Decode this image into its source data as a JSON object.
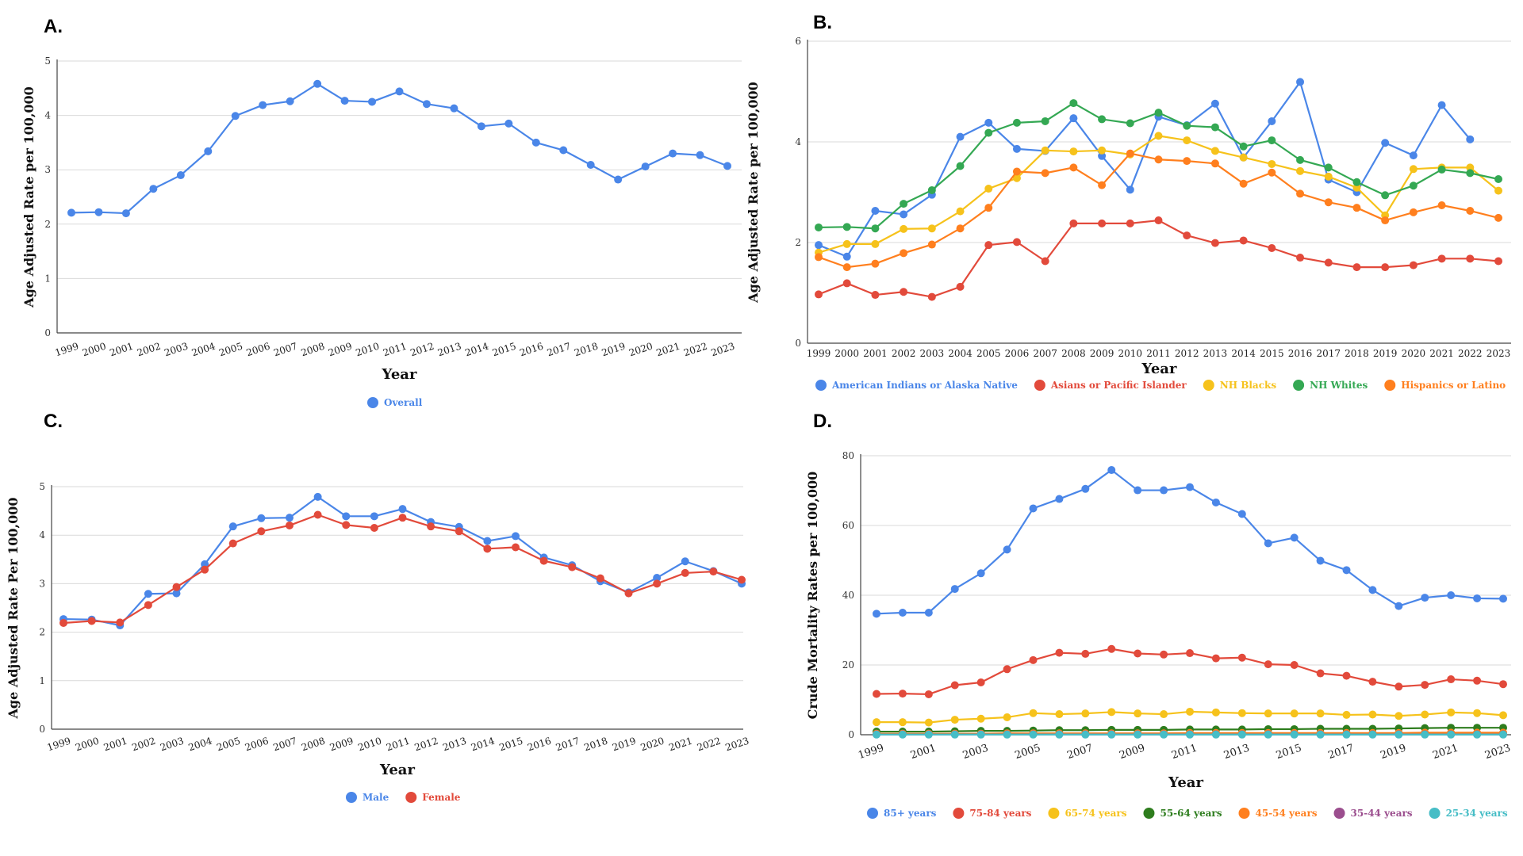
{
  "panel_labels": [
    "A.",
    "B.",
    "C.",
    "D."
  ],
  "colors": {
    "blue": "#4a86e8",
    "red": "#e24a3b",
    "yellow": "#f6c21b",
    "green": "#34a853",
    "orange": "#ff7f1e",
    "darkgreen": "#2e7d1e",
    "purple": "#9b4e8e",
    "teal": "#46bdc6"
  },
  "chart_data": [
    {
      "type": "line",
      "xlabel": "Year",
      "ylabel": "Age Adjusted Rate per 100,000",
      "ylim": [
        0,
        5
      ],
      "yticks": [
        0,
        1,
        2,
        3,
        4,
        5
      ],
      "grid": true,
      "legend": "bottom",
      "categories": [
        "1999",
        "2000",
        "2001",
        "2002",
        "2003",
        "2004",
        "2005",
        "2006",
        "2007",
        "2008",
        "2009",
        "2010",
        "2011",
        "2012",
        "2013",
        "2014",
        "2015",
        "2016",
        "2017",
        "2018",
        "2019",
        "2020",
        "2021",
        "2022",
        "2023"
      ],
      "series": [
        {
          "name": "Overall",
          "color": "#4a86e8",
          "values": [
            2.21,
            2.22,
            2.2,
            2.65,
            2.9,
            3.34,
            3.99,
            4.19,
            4.26,
            4.58,
            4.27,
            4.25,
            4.44,
            4.21,
            4.13,
            3.8,
            3.85,
            3.5,
            3.36,
            3.09,
            2.82,
            3.06,
            3.3,
            3.27,
            3.07
          ]
        }
      ]
    },
    {
      "type": "line",
      "xlabel": "Year",
      "ylabel": "Age Adjusted Rate per 100,000",
      "ylim": [
        0,
        6
      ],
      "yticks": [
        0,
        2,
        4,
        6
      ],
      "grid": true,
      "legend": "bottom",
      "categories": [
        "1999",
        "2000",
        "2001",
        "2002",
        "2003",
        "2004",
        "2005",
        "2006",
        "2007",
        "2008",
        "2009",
        "2010",
        "2011",
        "2012",
        "2013",
        "2014",
        "2015",
        "2016",
        "2017",
        "2018",
        "2019",
        "2020",
        "2021",
        "2022",
        "2023"
      ],
      "series": [
        {
          "name": "American Indians or Alaska Native",
          "color": "#4a86e8",
          "values": [
            1.95,
            1.72,
            2.63,
            2.56,
            2.95,
            4.1,
            4.38,
            3.86,
            3.82,
            4.47,
            3.72,
            3.05,
            4.5,
            4.33,
            4.76,
            3.69,
            4.41,
            5.19,
            3.25,
            3.0,
            3.98,
            3.73,
            4.73,
            4.05,
            null
          ]
        },
        {
          "name": "Asians or Pacific Islander",
          "color": "#e24a3b",
          "values": [
            0.97,
            1.19,
            0.96,
            1.02,
            0.92,
            1.12,
            1.95,
            2.01,
            1.63,
            2.38,
            2.38,
            2.38,
            2.44,
            2.14,
            1.99,
            2.04,
            1.89,
            1.7,
            1.6,
            1.51,
            1.51,
            1.55,
            1.68,
            1.68,
            1.63
          ]
        },
        {
          "name": "NH Blacks",
          "color": "#f6c21b",
          "values": [
            1.8,
            1.97,
            1.97,
            2.27,
            2.28,
            2.62,
            3.07,
            3.28,
            3.83,
            3.81,
            3.83,
            3.75,
            4.12,
            4.03,
            3.82,
            3.69,
            3.56,
            3.42,
            3.31,
            3.09,
            2.54,
            3.46,
            3.49,
            3.49,
            3.03
          ]
        },
        {
          "name": "NH Whites",
          "color": "#34a853",
          "values": [
            2.3,
            2.31,
            2.28,
            2.77,
            3.04,
            3.52,
            4.18,
            4.38,
            4.41,
            4.77,
            4.45,
            4.37,
            4.58,
            4.32,
            4.29,
            3.91,
            4.03,
            3.64,
            3.49,
            3.2,
            2.94,
            3.13,
            3.45,
            3.38,
            3.26
          ]
        },
        {
          "name": "Hispanics or Latino",
          "color": "#ff7f1e",
          "values": [
            1.71,
            1.51,
            1.58,
            1.79,
            1.96,
            2.28,
            2.69,
            3.41,
            3.38,
            3.49,
            3.14,
            3.77,
            3.65,
            3.62,
            3.57,
            3.17,
            3.39,
            2.97,
            2.8,
            2.69,
            2.44,
            2.6,
            2.74,
            2.63,
            2.49
          ]
        }
      ]
    },
    {
      "type": "line",
      "xlabel": "Year",
      "ylabel": "Age Adjusted Rate Per 100,000",
      "ylim": [
        0,
        5
      ],
      "yticks": [
        0,
        1,
        2,
        3,
        4,
        5
      ],
      "grid": true,
      "legend": "bottom",
      "categories": [
        "1999",
        "2000",
        "2001",
        "2002",
        "2003",
        "2004",
        "2005",
        "2006",
        "2007",
        "2008",
        "2009",
        "2010",
        "2011",
        "2012",
        "2013",
        "2014",
        "2015",
        "2016",
        "2017",
        "2018",
        "2019",
        "2020",
        "2021",
        "2022",
        "2023"
      ],
      "series": [
        {
          "name": "Male",
          "color": "#4a86e8",
          "values": [
            2.27,
            2.26,
            2.14,
            2.79,
            2.8,
            3.4,
            4.18,
            4.35,
            4.36,
            4.79,
            4.39,
            4.39,
            4.54,
            4.27,
            4.17,
            3.88,
            3.98,
            3.54,
            3.38,
            3.05,
            2.82,
            3.12,
            3.46,
            3.26,
            3.0
          ]
        },
        {
          "name": "Female",
          "color": "#e24a3b",
          "values": [
            2.19,
            2.23,
            2.2,
            2.56,
            2.93,
            3.29,
            3.83,
            4.08,
            4.2,
            4.42,
            4.21,
            4.15,
            4.36,
            4.18,
            4.08,
            3.72,
            3.75,
            3.47,
            3.34,
            3.11,
            2.8,
            3.0,
            3.22,
            3.25,
            3.08
          ]
        }
      ]
    },
    {
      "type": "line",
      "xlabel": "Year",
      "ylabel": "Crude Mortality Rates per 100,000",
      "ylim": [
        0,
        80
      ],
      "yticks": [
        0,
        20,
        40,
        60,
        80
      ],
      "grid": true,
      "legend": "bottom",
      "categories": [
        "1999",
        "2000",
        "2001",
        "2002",
        "2003",
        "2004",
        "2005",
        "2006",
        "2007",
        "2008",
        "2009",
        "2010",
        "2011",
        "2012",
        "2013",
        "2014",
        "2015",
        "2016",
        "2017",
        "2018",
        "2019",
        "2020",
        "2021",
        "2022",
        "2023"
      ],
      "tick_labels": [
        "1999",
        "",
        "2001",
        "",
        "2003",
        "",
        "2005",
        "",
        "2007",
        "",
        "2009",
        "",
        "2011",
        "",
        "2013",
        "",
        "2015",
        "",
        "2017",
        "",
        "2019",
        "",
        "2021",
        "",
        "2023"
      ],
      "series": [
        {
          "name": "85+ years",
          "color": "#4a86e8",
          "values": [
            34.7,
            35.0,
            35.0,
            41.8,
            46.3,
            53.1,
            64.9,
            67.6,
            70.5,
            75.9,
            70.1,
            70.1,
            71.0,
            66.6,
            63.3,
            54.9,
            56.5,
            49.9,
            47.2,
            41.5,
            36.9,
            39.3,
            40.0,
            39.1,
            39.0
          ]
        },
        {
          "name": "75-84 years",
          "color": "#e24a3b",
          "values": [
            11.7,
            11.8,
            11.6,
            14.2,
            15.0,
            18.8,
            21.4,
            23.5,
            23.2,
            24.6,
            23.3,
            23.0,
            23.4,
            21.9,
            22.1,
            20.2,
            20.0,
            17.6,
            16.9,
            15.2,
            13.8,
            14.3,
            15.9,
            15.5,
            14.5
          ]
        },
        {
          "name": "65-74 years",
          "color": "#f6c21b",
          "values": [
            3.6,
            3.6,
            3.5,
            4.3,
            4.6,
            5.0,
            6.2,
            5.9,
            6.1,
            6.5,
            6.1,
            5.9,
            6.6,
            6.4,
            6.2,
            6.1,
            6.1,
            6.1,
            5.7,
            5.8,
            5.4,
            5.8,
            6.4,
            6.2,
            5.6
          ]
        },
        {
          "name": "55-64 years",
          "color": "#2e7d1e",
          "values": [
            0.9,
            0.9,
            0.9,
            1.0,
            1.1,
            1.1,
            1.2,
            1.3,
            1.3,
            1.4,
            1.4,
            1.4,
            1.5,
            1.5,
            1.5,
            1.6,
            1.6,
            1.7,
            1.7,
            1.7,
            1.8,
            1.9,
            2.0,
            2.0,
            2.0
          ]
        },
        {
          "name": "45-54 years",
          "color": "#ff7f1e",
          "values": [
            0.3,
            0.3,
            0.3,
            0.3,
            0.3,
            0.4,
            0.4,
            0.4,
            0.4,
            0.4,
            0.4,
            0.4,
            0.5,
            0.5,
            0.5,
            0.5,
            0.5,
            0.5,
            0.5,
            0.5,
            0.5,
            0.6,
            0.6,
            0.6,
            0.6
          ]
        },
        {
          "name": "35-44 years",
          "color": "#9b4e8e",
          "values": [
            0.1,
            0.1,
            0.1,
            0.1,
            0.1,
            0.1,
            0.1,
            0.1,
            0.1,
            0.1,
            0.1,
            0.1,
            0.1,
            0.1,
            0.1,
            0.1,
            0.1,
            0.1,
            0.1,
            0.1,
            0.1,
            0.1,
            0.1,
            0.1,
            0.1
          ]
        },
        {
          "name": "25-34 years",
          "color": "#46bdc6",
          "values": [
            0.05,
            0.05,
            0.05,
            0.05,
            0.05,
            0.05,
            0.05,
            0.05,
            0.05,
            0.05,
            0.05,
            0.05,
            0.05,
            0.05,
            0.05,
            0.05,
            0.05,
            0.05,
            0.05,
            0.05,
            0.05,
            0.05,
            0.05,
            0.05,
            0.05
          ]
        }
      ]
    }
  ]
}
